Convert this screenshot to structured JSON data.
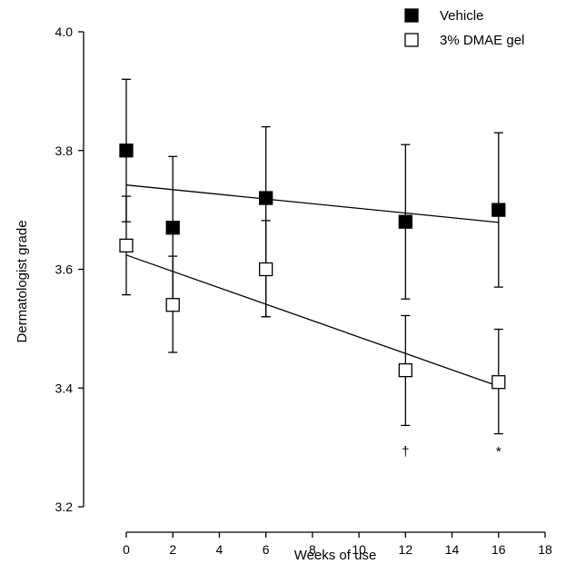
{
  "chart_data": {
    "type": "scatter",
    "title": "",
    "xlabel": "Weeks of use",
    "ylabel": "Dermatologist grade",
    "xlim": [
      0,
      18
    ],
    "ylim": [
      3.2,
      4.0
    ],
    "x_ticks": [
      "0",
      "2",
      "4",
      "6",
      "8",
      "10",
      "12",
      "14",
      "16",
      "18"
    ],
    "y_ticks": [
      "3.2",
      "3.4",
      "3.6",
      "3.8",
      "4.0"
    ],
    "grid": false,
    "legend_position": "top-right",
    "series": [
      {
        "name": "Vehicle",
        "marker": "filled-square",
        "color": "#000000",
        "x": [
          0,
          2,
          6,
          12,
          16
        ],
        "y": [
          3.8,
          3.67,
          3.72,
          3.68,
          3.7
        ],
        "error_low": [
          3.68,
          3.54,
          3.52,
          3.55,
          3.57
        ],
        "error_high": [
          3.92,
          3.79,
          3.84,
          3.81,
          3.83
        ],
        "trend": {
          "x": [
            0,
            16
          ],
          "y": [
            3.742,
            3.679
          ]
        }
      },
      {
        "name": "3% DMAE gel",
        "marker": "open-square",
        "color": "#000000",
        "x": [
          0,
          2,
          6,
          12,
          16
        ],
        "y": [
          3.64,
          3.54,
          3.6,
          3.43,
          3.41
        ],
        "error_low": [
          3.557,
          3.46,
          3.52,
          3.337,
          3.323
        ],
        "error_high": [
          3.723,
          3.622,
          3.682,
          3.522,
          3.499
        ],
        "trend": {
          "x": [
            0,
            16
          ],
          "y": [
            3.624,
            3.403
          ]
        }
      }
    ],
    "annotations": [
      {
        "text": "†",
        "x": 12
      },
      {
        "text": "*",
        "x": 16
      }
    ]
  }
}
